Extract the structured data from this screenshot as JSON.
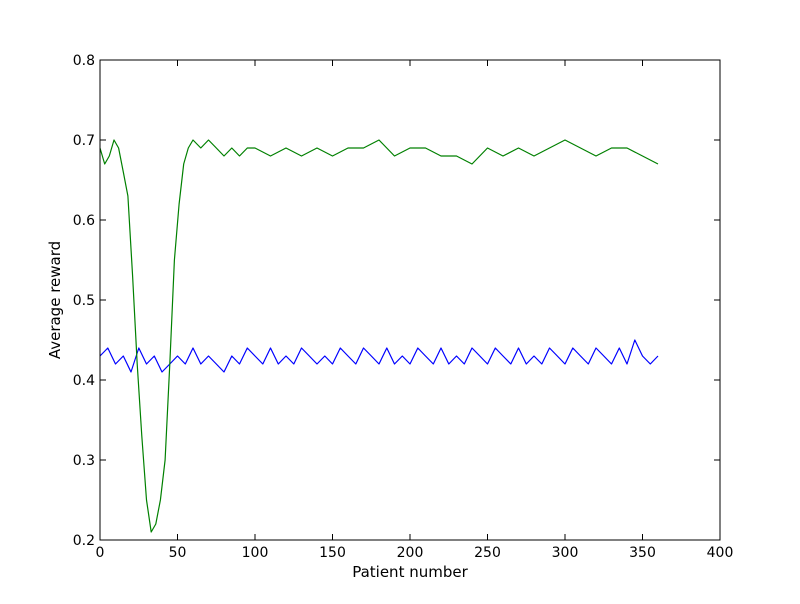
{
  "chart_data": {
    "type": "line",
    "title": "",
    "xlabel": "Patient number",
    "ylabel": "Average reward",
    "xlim": [
      0,
      400
    ],
    "ylim": [
      0.2,
      0.8
    ],
    "xticks": [
      0,
      50,
      100,
      150,
      200,
      250,
      300,
      350,
      400
    ],
    "yticks": [
      0.2,
      0.3,
      0.4,
      0.5,
      0.6,
      0.7,
      0.8
    ],
    "xtick_labels": [
      "0",
      "50",
      "100",
      "150",
      "200",
      "250",
      "300",
      "350",
      "400"
    ],
    "ytick_labels": [
      "0.2",
      "0.3",
      "0.4",
      "0.5",
      "0.6",
      "0.7",
      "0.8"
    ],
    "grid": false,
    "legend": "none",
    "series": [
      {
        "color": "#0000ff",
        "x": [
          0,
          5,
          10,
          15,
          20,
          25,
          30,
          35,
          40,
          45,
          50,
          55,
          60,
          65,
          70,
          75,
          80,
          85,
          90,
          95,
          100,
          105,
          110,
          115,
          120,
          125,
          130,
          135,
          140,
          145,
          150,
          155,
          160,
          165,
          170,
          175,
          180,
          185,
          190,
          195,
          200,
          205,
          210,
          215,
          220,
          225,
          230,
          235,
          240,
          245,
          250,
          255,
          260,
          265,
          270,
          275,
          280,
          285,
          290,
          295,
          300,
          305,
          310,
          315,
          320,
          325,
          330,
          335,
          340,
          345,
          350,
          355,
          360
        ],
        "y": [
          0.43,
          0.44,
          0.42,
          0.43,
          0.41,
          0.44,
          0.42,
          0.43,
          0.41,
          0.42,
          0.43,
          0.42,
          0.44,
          0.42,
          0.43,
          0.42,
          0.41,
          0.43,
          0.42,
          0.44,
          0.43,
          0.42,
          0.44,
          0.42,
          0.43,
          0.42,
          0.44,
          0.43,
          0.42,
          0.43,
          0.42,
          0.44,
          0.43,
          0.42,
          0.44,
          0.43,
          0.42,
          0.44,
          0.42,
          0.43,
          0.42,
          0.44,
          0.43,
          0.42,
          0.44,
          0.42,
          0.43,
          0.42,
          0.44,
          0.43,
          0.42,
          0.44,
          0.43,
          0.42,
          0.44,
          0.42,
          0.43,
          0.42,
          0.44,
          0.43,
          0.42,
          0.44,
          0.43,
          0.42,
          0.44,
          0.43,
          0.42,
          0.44,
          0.42,
          0.45,
          0.43,
          0.42,
          0.43
        ]
      },
      {
        "color": "#008000",
        "x": [
          0,
          3,
          6,
          9,
          12,
          15,
          18,
          21,
          24,
          27,
          30,
          33,
          36,
          39,
          42,
          45,
          48,
          51,
          54,
          57,
          60,
          65,
          70,
          75,
          80,
          85,
          90,
          95,
          100,
          110,
          120,
          130,
          140,
          150,
          160,
          170,
          180,
          190,
          200,
          210,
          220,
          230,
          240,
          250,
          260,
          270,
          280,
          290,
          300,
          310,
          320,
          330,
          340,
          350,
          360
        ],
        "y": [
          0.69,
          0.67,
          0.68,
          0.7,
          0.69,
          0.66,
          0.63,
          0.53,
          0.42,
          0.33,
          0.25,
          0.21,
          0.22,
          0.25,
          0.3,
          0.42,
          0.55,
          0.62,
          0.67,
          0.69,
          0.7,
          0.69,
          0.7,
          0.69,
          0.68,
          0.69,
          0.68,
          0.69,
          0.69,
          0.68,
          0.69,
          0.68,
          0.69,
          0.68,
          0.69,
          0.69,
          0.7,
          0.68,
          0.69,
          0.69,
          0.68,
          0.68,
          0.67,
          0.69,
          0.68,
          0.69,
          0.68,
          0.69,
          0.7,
          0.69,
          0.68,
          0.69,
          0.69,
          0.68,
          0.67
        ]
      }
    ]
  }
}
